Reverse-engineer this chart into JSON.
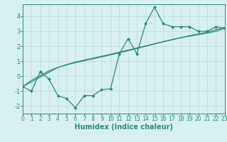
{
  "xlabel": "Humidex (Indice chaleur)",
  "x_data": [
    0,
    1,
    2,
    3,
    4,
    5,
    6,
    7,
    8,
    9,
    10,
    11,
    12,
    13,
    14,
    15,
    16,
    17,
    18,
    19,
    20,
    21,
    22,
    23
  ],
  "y_main": [
    -0.7,
    -1.0,
    0.3,
    -0.2,
    -1.3,
    -1.5,
    -2.1,
    -1.3,
    -1.3,
    -0.9,
    -0.85,
    1.5,
    2.5,
    1.5,
    3.5,
    4.6,
    3.5,
    3.3,
    3.3,
    3.3,
    3.0,
    3.0,
    3.3,
    3.2
  ],
  "y_trend1": [
    -0.7,
    -0.38,
    -0.06,
    0.26,
    0.58,
    0.76,
    0.94,
    1.07,
    1.2,
    1.33,
    1.46,
    1.6,
    1.74,
    1.88,
    2.02,
    2.16,
    2.3,
    2.44,
    2.57,
    2.67,
    2.77,
    2.87,
    3.0,
    3.2
  ],
  "y_trend2": [
    -0.7,
    -0.28,
    0.04,
    0.36,
    0.58,
    0.76,
    0.9,
    1.03,
    1.16,
    1.29,
    1.42,
    1.56,
    1.7,
    1.85,
    2.0,
    2.15,
    2.3,
    2.44,
    2.57,
    2.7,
    2.82,
    2.94,
    3.1,
    3.25
  ],
  "line_color": "#2e8b7a",
  "bg_color": "#d8f0ef",
  "grid_color": "#b8dbd8",
  "xlim": [
    0,
    23
  ],
  "ylim": [
    -2.5,
    4.8
  ],
  "yticks": [
    -2,
    -1,
    0,
    1,
    2,
    3,
    4
  ],
  "xticks": [
    0,
    1,
    2,
    3,
    4,
    5,
    6,
    7,
    8,
    9,
    10,
    11,
    12,
    13,
    14,
    15,
    16,
    17,
    18,
    19,
    20,
    21,
    22,
    23
  ],
  "tick_fontsize": 5.5,
  "xlabel_fontsize": 7.0
}
